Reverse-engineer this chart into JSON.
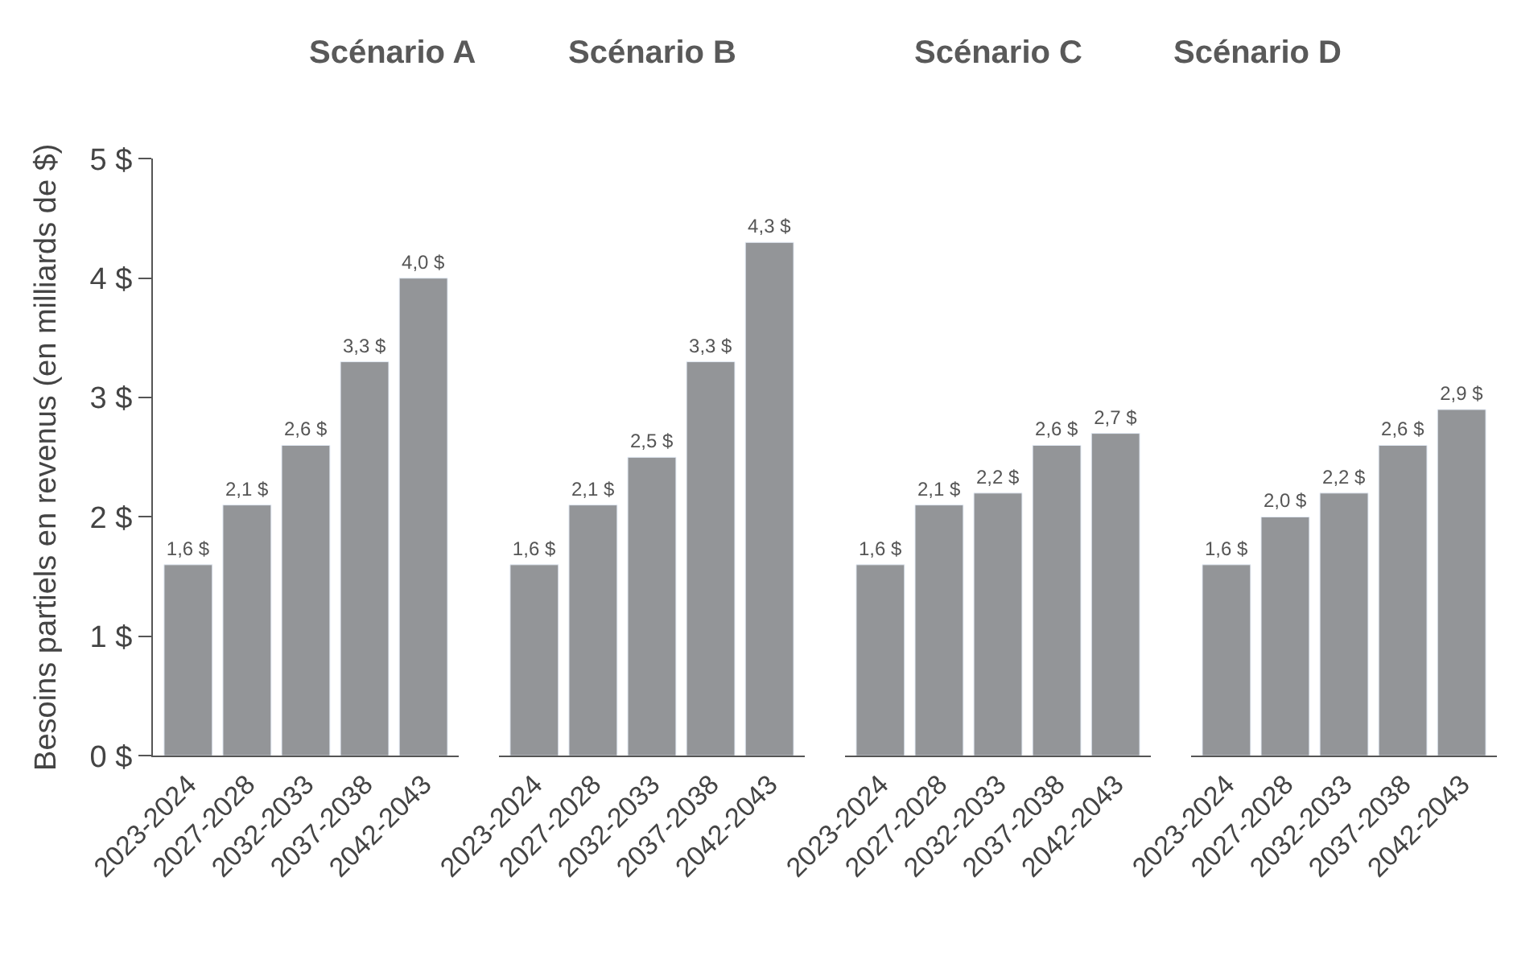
{
  "chart_data": [
    {
      "type": "bar",
      "title": "Scénario A",
      "ylabel": "Besoins partiels en revenus (en milliards de $)",
      "categories": [
        "2023-2024",
        "2027-2028",
        "2032-2033",
        "2037-2038",
        "2042-2043"
      ],
      "values": [
        1.6,
        2.1,
        2.6,
        3.3,
        4.0
      ],
      "value_labels": [
        "1,6 $",
        "2,1 $",
        "2,6 $",
        "3,3 $",
        "4,0 $"
      ],
      "color": "#939598",
      "ylim": [
        0,
        5
      ],
      "yticks": [
        {
          "value": 0,
          "label": "0 $"
        },
        {
          "value": 1,
          "label": "1 $"
        },
        {
          "value": 2,
          "label": "2 $"
        },
        {
          "value": 3,
          "label": "3 $"
        },
        {
          "value": 4,
          "label": "4 $"
        },
        {
          "value": 5,
          "label": "5 $"
        }
      ]
    },
    {
      "type": "bar",
      "title": "Scénario B",
      "categories": [
        "2023-2024",
        "2027-2028",
        "2032-2033",
        "2037-2038",
        "2042-2043"
      ],
      "values": [
        1.6,
        2.1,
        2.5,
        3.3,
        4.3
      ],
      "value_labels": [
        "1,6 $",
        "2,1 $",
        "2,5 $",
        "3,3 $",
        "4,3 $"
      ],
      "color": "#939598",
      "ylim": [
        0,
        5
      ],
      "tick_labels": "x"
    },
    {
      "type": "bar",
      "title": "Scénario C",
      "categories": [
        "2023-2024",
        "2027-2028",
        "2032-2033",
        "2037-2038",
        "2042-2043"
      ],
      "values": [
        1.6,
        2.1,
        2.2,
        2.6,
        2.7
      ],
      "value_labels": [
        "1,6 $",
        "2,1 $",
        "2,2 $",
        "2,6 $",
        "2,7 $"
      ],
      "color": "#939598",
      "ylim": [
        0,
        5
      ],
      "tick_labels": "x"
    },
    {
      "type": "bar",
      "title": "Scénario D",
      "categories": [
        "2023-2024",
        "2027-2028",
        "2032-2033",
        "2037-2038",
        "2042-2043"
      ],
      "values": [
        1.6,
        2.0,
        2.2,
        2.6,
        2.9
      ],
      "value_labels": [
        "1,6 $",
        "2,0 $",
        "2,2 $",
        "2,6 $",
        "2,9 $"
      ],
      "color": "#939598",
      "ylim": [
        0,
        5
      ],
      "tick_labels": "x"
    }
  ]
}
